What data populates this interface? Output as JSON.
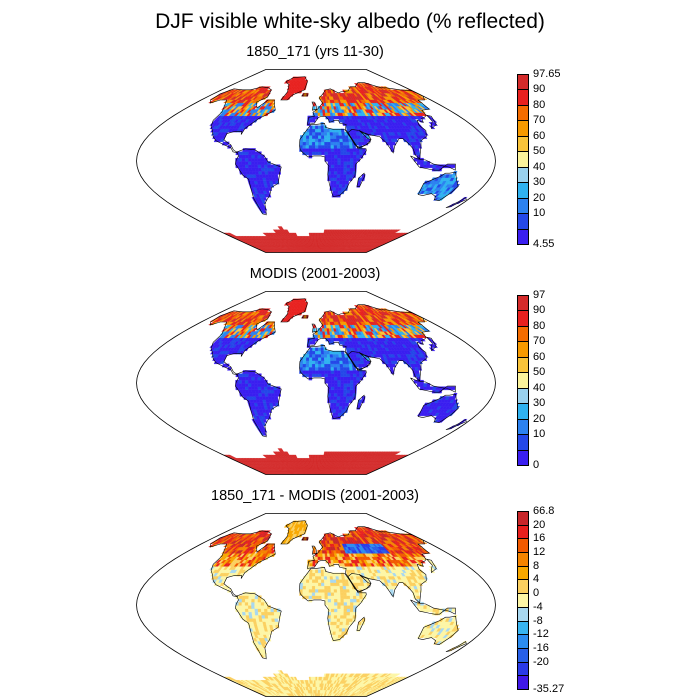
{
  "figure": {
    "title": "DJF visible white-sky albedo (% reflected)"
  },
  "panels": [
    {
      "id": "model",
      "title": "1850_171 (yrs 11-30)",
      "colorbar": {
        "labels": [
          "97.65",
          "90",
          "80",
          "70",
          "60",
          "50",
          "40",
          "30",
          "20",
          "10",
          "4.55"
        ],
        "colors": [
          "#d42b2b",
          "#e8201e",
          "#f46c00",
          "#f79a00",
          "#f9c43a",
          "#fbf39b",
          "#9ad2ee",
          "#2fb2f0",
          "#2c82f0",
          "#2448e8",
          "#3a1ef0"
        ]
      }
    },
    {
      "id": "obs",
      "title": "MODIS (2001-2003)",
      "colorbar": {
        "labels": [
          "97",
          "90",
          "80",
          "70",
          "60",
          "50",
          "40",
          "30",
          "20",
          "10",
          "0"
        ],
        "colors": [
          "#d42b2b",
          "#e8201e",
          "#f46c00",
          "#f79a00",
          "#f9c43a",
          "#fbf39b",
          "#9ad2ee",
          "#2fb2f0",
          "#2c82f0",
          "#2448e8",
          "#3a1ef0"
        ]
      }
    },
    {
      "id": "diff",
      "title": "1850_171 - MODIS (2001-2003)",
      "colorbar": {
        "labels": [
          "66.8",
          "20",
          "16",
          "12",
          "8",
          "4",
          "0",
          "-4",
          "-8",
          "-12",
          "-16",
          "-20",
          "-35.27"
        ],
        "colors": [
          "#c8262a",
          "#e8201e",
          "#f25a00",
          "#f58400",
          "#f8a800",
          "#fbd060",
          "#fdf6a6",
          "#a8d8f0",
          "#38b4f0",
          "#2c8cf0",
          "#2860e8",
          "#2a3ae8",
          "#4018e8"
        ]
      }
    }
  ]
}
